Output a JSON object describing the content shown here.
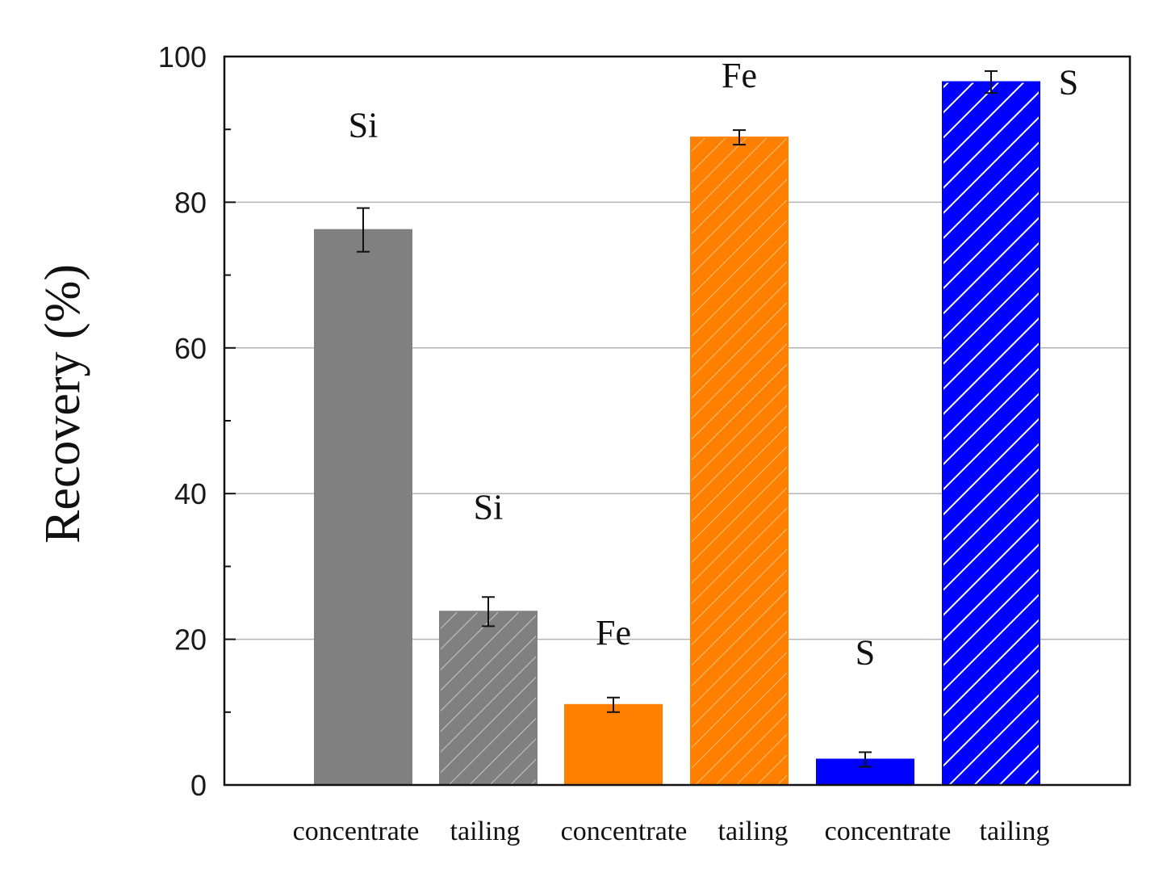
{
  "chart_data": {
    "type": "bar",
    "title": "",
    "xlabel": "",
    "ylabel": "Recovery (%)",
    "ylim": [
      0,
      100
    ],
    "yticks": [
      "0",
      "20",
      "40",
      "60",
      "80",
      "100"
    ],
    "grid": true,
    "categories": [
      "concentrate",
      "tailing",
      "concentrate",
      "tailing",
      "concentrate",
      "tailing"
    ],
    "values": [
      76.2,
      23.8,
      11.0,
      88.9,
      3.5,
      96.5
    ],
    "errors": [
      3.0,
      2.0,
      1.0,
      1.0,
      1.0,
      1.5
    ],
    "bar_labels": [
      "Si",
      "Si",
      "Fe",
      "Fe",
      "S",
      "S"
    ],
    "colors": [
      "#808080",
      "#808080",
      "#ff8000",
      "#ff8000",
      "#0000ff",
      "#0000ff"
    ],
    "hatched": [
      false,
      true,
      false,
      true,
      false,
      true
    ]
  }
}
